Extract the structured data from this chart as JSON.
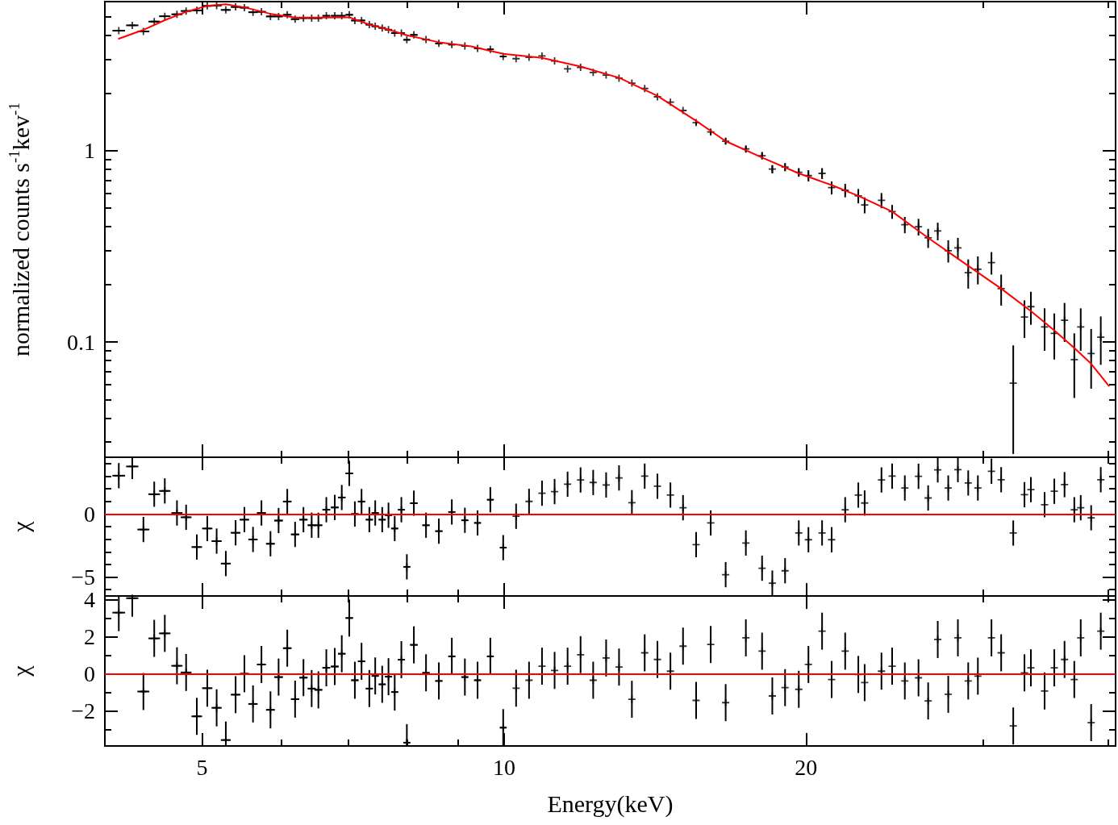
{
  "chart_data": [
    {
      "type": "scatter",
      "ylabel": "normalized counts s$^{-1}$kev$^{-1}$",
      "log": "xy",
      "tick_labels": "y",
      "grid": false,
      "xlim": [
        4,
        40.7
      ],
      "ylim": [
        0.025,
        6
      ],
      "xticks": [
        {
          "value": 4,
          "label": null
        },
        5,
        {
          "value": 6,
          "label": null
        },
        {
          "value": 7,
          "label": null
        },
        {
          "value": 8,
          "label": null
        },
        {
          "value": 9,
          "label": null
        },
        10,
        20,
        {
          "value": 30,
          "label": null
        },
        {
          "value": 40,
          "label": null
        }
      ],
      "yticks": [
        {
          "value": 0.03,
          "label": null
        },
        {
          "value": 0.04,
          "label": null
        },
        {
          "value": 0.05,
          "label": null
        },
        {
          "value": 0.06,
          "label": null
        },
        {
          "value": 0.07,
          "label": null
        },
        {
          "value": 0.08,
          "label": null
        },
        {
          "value": 0.09,
          "label": null
        },
        0.1,
        {
          "value": 0.2,
          "label": null
        },
        {
          "value": 0.3,
          "label": null
        },
        {
          "value": 0.4,
          "label": null
        },
        {
          "value": 0.5,
          "label": null
        },
        {
          "value": 0.6,
          "label": null
        },
        {
          "value": 0.7,
          "label": null
        },
        {
          "value": 0.8,
          "label": null
        },
        {
          "value": 0.9,
          "label": null
        },
        1,
        {
          "value": 2,
          "label": null
        },
        {
          "value": 3,
          "label": null
        },
        {
          "value": 4,
          "label": null
        },
        {
          "value": 5,
          "label": null
        }
      ],
      "series": [
        {
          "marker": "cross",
          "color": "#000000",
          "x": [
            4.13,
            4.26,
            4.37,
            4.48,
            4.59,
            4.72,
            4.82,
            4.94,
            5.06,
            5.17,
            5.28,
            5.4,
            5.51,
            5.62,
            5.73,
            5.85,
            5.96,
            6.08,
            6.19,
            6.31,
            6.43,
            6.53,
            6.65,
            6.78,
            6.89,
            7.01,
            7.1,
            7.21,
            7.34,
            7.44,
            7.56,
            7.67,
            7.78,
            7.9,
            8.0,
            8.13,
            8.36,
            8.61,
            8.87,
            9.14,
            9.41,
            9.69,
            9.98,
            10.28,
            10.59,
            10.91,
            11.23,
            11.57,
            11.92,
            12.27,
            12.64,
            13.02,
            13.41,
            13.81,
            14.22,
            14.65,
            15.08,
            15.54,
            16.07,
            16.63,
            17.42,
            18.08,
            18.51,
            19.06,
            19.67,
            20.11,
            20.75,
            21.21,
            21.88,
            22.55,
            22.88,
            23.78,
            24.37,
            25.09,
            25.89,
            26.47,
            27.06,
            27.72,
            28.34,
            29.02,
            29.67,
            30.61,
            31.3,
            32.18,
            33.02,
            33.51,
            34.58,
            35.36,
            36.2,
            37.02,
            37.57,
            38.48,
            39.34
          ],
          "values": [
            4.23,
            4.51,
            4.19,
            4.72,
            5.03,
            5.15,
            5.36,
            5.4,
            5.7,
            5.72,
            5.43,
            5.63,
            5.58,
            5.28,
            5.31,
            5.02,
            5.02,
            5.12,
            4.86,
            4.92,
            4.92,
            4.92,
            5.06,
            5.06,
            5.06,
            5.12,
            4.78,
            4.78,
            4.55,
            4.46,
            4.37,
            4.28,
            4.11,
            4.11,
            3.79,
            4.02,
            3.8,
            3.63,
            3.58,
            3.52,
            3.42,
            3.38,
            3.1,
            3.02,
            3.07,
            3.12,
            2.94,
            2.67,
            2.72,
            2.56,
            2.48,
            2.39,
            2.25,
            2.11,
            1.91,
            1.79,
            1.62,
            1.4,
            1.25,
            1.12,
            1.02,
            0.94,
            0.8,
            0.82,
            0.77,
            0.74,
            0.76,
            0.64,
            0.62,
            0.58,
            0.52,
            0.55,
            0.48,
            0.41,
            0.4,
            0.35,
            0.38,
            0.3,
            0.31,
            0.23,
            0.24,
            0.26,
            0.19,
            0.061,
            0.135,
            0.153,
            0.12,
            0.111,
            0.13,
            0.081,
            0.12,
            0.087,
            0.106
          ],
          "errors": [
            null,
            null,
            null,
            null,
            null,
            null,
            null,
            null,
            null,
            null,
            null,
            null,
            null,
            null,
            null,
            null,
            null,
            null,
            null,
            null,
            null,
            null,
            null,
            null,
            null,
            null,
            null,
            null,
            null,
            null,
            null,
            null,
            null,
            null,
            null,
            null,
            null,
            null,
            null,
            null,
            null,
            null,
            null,
            null,
            null,
            null,
            null,
            null,
            null,
            null,
            null,
            null,
            null,
            null,
            null,
            null,
            null,
            0.04,
            0.04,
            0.04,
            0.04,
            0.04,
            0.04,
            0.04,
            0.04,
            0.05,
            0.05,
            0.05,
            0.05,
            0.05,
            0.05,
            0.05,
            0.04,
            0.04,
            0.04,
            0.04,
            0.04,
            0.04,
            0.04,
            0.04,
            0.04,
            0.035,
            0.035,
            0.035,
            0.03,
            0.03,
            0.03,
            0.03,
            0.03,
            0.03,
            0.03,
            0.03,
            0.03
          ],
          "xerrors": [
            0.06,
            0.06,
            0.06,
            0.06,
            0.06,
            0.06,
            0.06,
            0.06,
            0.06,
            0.06,
            0.06,
            0.06,
            0.06,
            0.06,
            0.06,
            0.06,
            0.06,
            0.06,
            0.06,
            0.06,
            0.06,
            0.06,
            0.06,
            0.06,
            0.06,
            0.06,
            0.06,
            0.06,
            0.06,
            0.06,
            0.06,
            0.06,
            0.06,
            0.06,
            0.06,
            0.07,
            0.07,
            0.07,
            0.07,
            0.07,
            0.07,
            0.07,
            0.07,
            null,
            null,
            null,
            null,
            null,
            null,
            null,
            null,
            null,
            null,
            null,
            null,
            null,
            null,
            null,
            null,
            null,
            null,
            null,
            null,
            null,
            null,
            null,
            null,
            null,
            null,
            null,
            null,
            null,
            null,
            null,
            null,
            null,
            null,
            null,
            null,
            null,
            null,
            null,
            null,
            null,
            null,
            null,
            null,
            null,
            null,
            null,
            null,
            null,
            null
          ]
        },
        {
          "type": "line",
          "marker": "none",
          "color": "#ff0000",
          "x": [
            4.13,
            4.37,
            4.59,
            4.82,
            5.06,
            5.28,
            5.51,
            5.85,
            6.19,
            6.53,
            7.01,
            7.34,
            7.67,
            8.0,
            8.61,
            9.27,
            9.98,
            10.91,
            11.92,
            13.02,
            14.22,
            15.54,
            16.63,
            18.08,
            19.67,
            21.21,
            22.55,
            24.37,
            26.47,
            29.02,
            31.3,
            33.51,
            35.36,
            37.02,
            38.48,
            40.07
          ],
          "values": [
            3.84,
            4.27,
            4.8,
            5.31,
            5.7,
            5.82,
            5.6,
            5.18,
            4.95,
            4.95,
            4.97,
            4.55,
            4.28,
            4.0,
            3.68,
            3.5,
            3.2,
            3.05,
            2.75,
            2.4,
            1.93,
            1.43,
            1.12,
            0.92,
            0.76,
            0.66,
            0.58,
            0.48,
            0.35,
            0.25,
            0.19,
            0.145,
            0.115,
            0.093,
            0.077,
            0.059
          ]
        }
      ]
    },
    {
      "type": "scatter",
      "ylabel": "χ",
      "log": "x",
      "tick_labels": "y",
      "grid": false,
      "marker": "cross",
      "xlim": [
        4,
        40.7
      ],
      "ylim": [
        -6.5,
        4.5
      ],
      "xticks": [
        {
          "value": 4,
          "label": null
        },
        5,
        {
          "value": 6,
          "label": null
        },
        {
          "value": 7,
          "label": null
        },
        {
          "value": 8,
          "label": null
        },
        {
          "value": 9,
          "label": null
        },
        10,
        20,
        {
          "value": 30,
          "label": null
        },
        {
          "value": 40,
          "label": null
        }
      ],
      "yticks": [
        {
          "value": -6,
          "label": null
        },
        {
          "value": -5,
          "label": "−5"
        },
        {
          "value": -4,
          "label": null
        },
        {
          "value": -3,
          "label": null
        },
        {
          "value": -2,
          "label": null
        },
        {
          "value": -1,
          "label": null
        },
        0,
        {
          "value": 1,
          "label": null
        },
        {
          "value": 2,
          "label": null
        },
        {
          "value": 3,
          "label": null
        },
        {
          "value": 4,
          "label": null
        }
      ],
      "ref_lines": [
        {
          "axis": "y",
          "value": 0,
          "color": "#ff0000"
        }
      ],
      "series": [
        {
          "color": "#000000",
          "x": [
            4.13,
            4.26,
            4.37,
            4.48,
            4.59,
            4.72,
            4.82,
            4.94,
            5.06,
            5.17,
            5.28,
            5.4,
            5.51,
            5.62,
            5.73,
            5.85,
            5.96,
            6.08,
            6.19,
            6.31,
            6.43,
            6.53,
            6.65,
            6.78,
            6.89,
            7.01,
            7.1,
            7.21,
            7.34,
            7.44,
            7.56,
            7.67,
            7.78,
            7.9,
            8.0,
            8.13,
            8.36,
            8.61,
            8.87,
            9.14,
            9.41,
            9.69,
            9.98,
            10.28,
            10.59,
            10.91,
            11.23,
            11.57,
            11.92,
            12.27,
            12.64,
            13.02,
            13.41,
            13.81,
            14.22,
            14.65,
            15.08,
            15.54,
            16.07,
            16.63,
            17.42,
            18.08,
            18.51,
            19.06,
            19.67,
            20.11,
            20.75,
            21.21,
            21.88,
            22.55,
            22.88,
            23.78,
            24.37,
            25.09,
            25.89,
            26.47,
            27.06,
            27.72,
            28.34,
            29.02,
            29.67,
            30.61,
            31.3,
            32.18,
            33.02,
            33.51,
            34.58,
            35.36,
            36.2,
            37.02,
            37.57,
            38.48,
            39.34
          ],
          "values": [
            3.04,
            3.77,
            -1.23,
            1.57,
            1.83,
            0.08,
            -0.26,
            -2.62,
            -1.15,
            -2.15,
            -3.93,
            -1.49,
            -0.45,
            -2.02,
            0.08,
            -2.36,
            -0.52,
            0.99,
            -1.62,
            -0.45,
            -0.89,
            -0.89,
            0.34,
            0.52,
            1.31,
            3.22,
            0,
            0.99,
            -0.45,
            0.08,
            -0.45,
            -0.1,
            -1.15,
            0.34,
            -4.19,
            0.86,
            -0.89,
            -1.36,
            0.16,
            -0.5,
            -0.71,
            1.13,
            -2.67,
            -0.18,
            1.0,
            1.65,
            1.78,
            2.36,
            2.7,
            2.5,
            2.3,
            2.86,
            0.9,
            3.0,
            2.2,
            1.5,
            0.5,
            -2.43,
            -0.71,
            -4.81,
            -2.3,
            -4.3,
            -5.48,
            -4.5,
            -1.5,
            -2.04,
            -1.5,
            -2.04,
            0.34,
            1.5,
            0.87,
            2.7,
            3.0,
            2.06,
            2.99,
            1.27,
            3.5,
            2.06,
            3.52,
            2.46,
            2.06,
            3.39,
            2.72,
            -1.51,
            1.53,
            1.93,
            0.74,
            1.8,
            2.33,
            0.34,
            0.5,
            -0.3,
            2.72
          ],
          "errors": [
            1,
            [
              2.77,
              4.5
            ],
            1,
            1,
            1,
            1,
            1,
            1,
            1,
            1,
            1,
            1,
            1,
            1,
            1,
            1,
            1,
            1,
            1,
            1,
            1,
            1,
            1,
            1,
            1,
            1,
            1,
            1,
            1,
            1,
            1,
            1,
            1,
            1,
            1,
            1,
            1,
            1,
            1,
            1,
            1,
            1,
            1,
            1,
            1,
            1,
            1,
            1,
            1,
            1,
            1,
            1,
            1,
            1,
            1,
            1,
            1,
            1,
            1,
            1,
            1,
            1,
            1,
            1,
            1,
            1,
            1,
            1,
            1,
            1,
            1,
            1,
            1,
            1,
            1,
            1,
            1,
            1,
            [
              2.52,
              4.5
            ],
            1,
            1,
            1,
            1,
            1,
            1,
            1,
            1,
            1,
            1,
            1,
            1,
            1,
            1
          ],
          "xerrors": [
            0.06,
            0.06,
            0.06,
            0.06,
            0.06,
            0.06,
            0.06,
            0.06,
            0.06,
            0.06,
            0.06,
            0.06,
            0.06,
            0.06,
            0.06,
            0.06,
            0.06,
            0.06,
            0.06,
            0.06,
            0.06,
            0.06,
            0.06,
            0.06,
            0.06,
            0.06,
            0.06,
            0.06,
            0.06,
            0.06,
            0.06,
            0.06,
            0.06,
            0.06,
            0.06,
            0.07,
            0.07,
            0.07,
            0.07,
            0.07,
            0.07,
            0.07,
            0.07,
            null,
            null,
            null,
            null,
            null,
            null,
            null,
            null,
            null,
            null,
            null,
            null,
            null,
            null,
            null,
            null,
            null,
            null,
            null,
            null,
            null,
            null,
            null,
            null,
            null,
            null,
            null,
            null,
            null,
            null,
            null,
            null,
            null,
            null,
            null,
            null,
            null,
            null,
            null,
            null,
            null,
            null,
            null,
            null,
            null,
            null,
            null,
            null,
            null,
            null
          ]
        }
      ]
    },
    {
      "type": "scatter",
      "ylabel": "χ",
      "xlabel": "Energy(keV)",
      "log": "x",
      "grid": false,
      "marker": "cross",
      "xlim": [
        4,
        40.7
      ],
      "ylim": [
        -3.9,
        4.2
      ],
      "xticks": [
        {
          "value": 4,
          "label": null
        },
        5,
        {
          "value": 6,
          "label": null
        },
        {
          "value": 7,
          "label": null
        },
        {
          "value": 8,
          "label": null
        },
        {
          "value": 9,
          "label": null
        },
        10,
        20,
        {
          "value": 30,
          "label": null
        },
        {
          "value": 40,
          "label": null
        }
      ],
      "yticks": [
        {
          "value": -3,
          "label": null
        },
        {
          "value": -2,
          "label": "−2"
        },
        {
          "value": -1,
          "label": null
        },
        0,
        {
          "value": 1,
          "label": null
        },
        2,
        {
          "value": 3,
          "label": null
        },
        4
      ],
      "ref_lines": [
        {
          "axis": "y",
          "value": 0,
          "color": "#ff0000"
        }
      ],
      "series": [
        {
          "color": "#000000",
          "x": [
            4.13,
            4.26,
            4.37,
            4.48,
            4.59,
            4.72,
            4.82,
            4.94,
            5.06,
            5.17,
            5.28,
            5.4,
            5.51,
            5.62,
            5.73,
            5.85,
            5.96,
            6.08,
            6.19,
            6.31,
            6.43,
            6.53,
            6.65,
            6.78,
            6.89,
            7.01,
            7.1,
            7.21,
            7.34,
            7.44,
            7.56,
            7.67,
            7.78,
            7.9,
            8.0,
            8.13,
            8.36,
            8.61,
            8.87,
            9.14,
            9.41,
            9.69,
            9.98,
            10.28,
            10.59,
            10.91,
            11.23,
            11.57,
            11.92,
            12.27,
            12.64,
            13.02,
            13.41,
            13.81,
            14.22,
            14.65,
            15.08,
            15.54,
            16.07,
            16.63,
            17.42,
            18.08,
            18.51,
            19.06,
            19.67,
            20.11,
            20.75,
            21.21,
            21.88,
            22.55,
            22.88,
            23.78,
            24.37,
            25.09,
            25.89,
            26.47,
            27.06,
            27.72,
            28.34,
            29.02,
            29.67,
            30.61,
            31.3,
            32.18,
            33.02,
            33.51,
            34.58,
            35.36,
            36.2,
            37.02,
            37.57,
            38.48,
            39.34
          ],
          "values": [
            3.3,
            4.08,
            -0.96,
            1.91,
            2.18,
            0.43,
            0.07,
            -2.3,
            -0.78,
            -1.84,
            -3.58,
            -1.13,
            0,
            -1.63,
            0.5,
            -1.95,
            -0.18,
            1.38,
            -1.37,
            -0.21,
            -0.8,
            -0.87,
            0.32,
            0.39,
            1.08,
            3.01,
            -0.35,
            0.67,
            -0.8,
            -0.12,
            -0.57,
            -0.16,
            -0.99,
            0.76,
            -3.72,
            1.56,
            0.05,
            -0.39,
            0.94,
            -0.18,
            -0.35,
            0.94,
            -2.91,
            -0.78,
            -0.35,
            0.41,
            0.18,
            0.41,
            1.03,
            -0.35,
            0.85,
            0.36,
            -1.38,
            1.13,
            0.77,
            0.14,
            1.49,
            -1.44,
            1.58,
            -1.56,
            1.94,
            1.22,
            -1.2,
            -0.75,
            -0.84,
            0.5,
            2.3,
            -0.31,
            1.22,
            -0.04,
            -0.48,
            0.14,
            0.41,
            -0.39,
            -0.22,
            -1.47,
            1.85,
            -1.11,
            1.94,
            -0.39,
            -0.13,
            1.94,
            1.13,
            -2.82,
            0.05,
            0.32,
            -0.93,
            0.32,
            0.77,
            -0.31,
            1.94,
            -2.64,
            2.3
          ],
          "errors": [
            [
              2.3,
              4.2
            ],
            [
              3.08,
              4.2
            ],
            1,
            1,
            1,
            1,
            1,
            1,
            1,
            1,
            [
              -3.9,
              -2.58
            ],
            1,
            1,
            1,
            1,
            1,
            1,
            1,
            1,
            1,
            1,
            1,
            1,
            1,
            1,
            1,
            1,
            1,
            1,
            1,
            1,
            1,
            1,
            1,
            [
              -3.9,
              -2.72
            ],
            1,
            1,
            1,
            1,
            1,
            1,
            1,
            [
              -3.9,
              -1.91
            ],
            1,
            1,
            1,
            1,
            1,
            1,
            1,
            1,
            1,
            1,
            1,
            1,
            1,
            1,
            1,
            1,
            1,
            1,
            1,
            1,
            1,
            1,
            1,
            1,
            1,
            1,
            1,
            1,
            1,
            1,
            1,
            1,
            1,
            1,
            1,
            1,
            1,
            1,
            1,
            1,
            1,
            1,
            1,
            1,
            1,
            1,
            1,
            1,
            1,
            1
          ],
          "xerrors": [
            0.06,
            0.06,
            0.06,
            0.06,
            0.06,
            0.06,
            0.06,
            0.06,
            0.06,
            0.06,
            0.06,
            0.06,
            0.06,
            0.06,
            0.06,
            0.06,
            0.06,
            0.06,
            0.06,
            0.06,
            0.06,
            0.06,
            0.06,
            0.06,
            0.06,
            0.06,
            0.06,
            0.06,
            0.06,
            0.06,
            0.06,
            0.06,
            0.06,
            0.06,
            0.06,
            0.07,
            0.07,
            0.07,
            0.07,
            0.07,
            0.07,
            0.07,
            0.07,
            null,
            null,
            null,
            null,
            null,
            null,
            null,
            null,
            null,
            null,
            null,
            null,
            null,
            null,
            null,
            null,
            null,
            null,
            null,
            null,
            null,
            null,
            null,
            null,
            null,
            null,
            null,
            null,
            null,
            null,
            null,
            null,
            null,
            null,
            null,
            null,
            null,
            null,
            null,
            null,
            null,
            null,
            null,
            null,
            null,
            null,
            null,
            null,
            null,
            null
          ]
        }
      ]
    }
  ]
}
